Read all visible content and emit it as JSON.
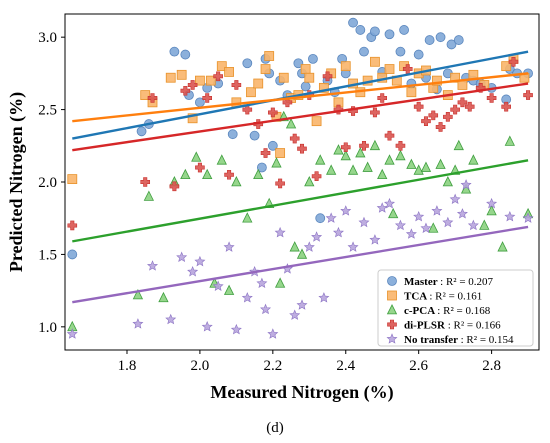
{
  "chart_data": {
    "type": "scatter",
    "xlabel": "Measured Nitrogen (%)",
    "ylabel": "Predicted Nitrogen (%)",
    "caption": "(d)",
    "xlim": [
      1.63,
      2.93
    ],
    "ylim": [
      0.84,
      3.16
    ],
    "xticks": [
      1.8,
      2.0,
      2.2,
      2.4,
      2.6,
      2.8
    ],
    "yticks": [
      1.0,
      1.5,
      2.0,
      2.5,
      3.0
    ],
    "xtick_labels": [
      "1.8",
      "2.0",
      "2.2",
      "2.4",
      "2.6",
      "2.8"
    ],
    "ytick_labels": [
      "1.0",
      "1.5",
      "2.0",
      "2.5",
      "3.0"
    ],
    "grid": false,
    "legend_position": "lower-right",
    "series": [
      {
        "name": "Master",
        "r2_label": ": R² = 0.207",
        "marker": "circle",
        "color": "#7fa7d7",
        "edge": "#5a86bd",
        "line_color": "#1f77b4",
        "fit": [
          [
            1.65,
            2.3
          ],
          [
            2.9,
            2.9
          ]
        ],
        "points": [
          [
            1.65,
            1.5
          ],
          [
            1.84,
            2.35
          ],
          [
            1.86,
            2.4
          ],
          [
            1.93,
            2.9
          ],
          [
            1.96,
            2.88
          ],
          [
            1.97,
            2.6
          ],
          [
            2.0,
            2.55
          ],
          [
            2.02,
            2.65
          ],
          [
            2.05,
            2.68
          ],
          [
            2.09,
            2.33
          ],
          [
            2.13,
            2.82
          ],
          [
            2.15,
            2.32
          ],
          [
            2.17,
            2.1
          ],
          [
            2.18,
            2.85
          ],
          [
            2.19,
            2.75
          ],
          [
            2.2,
            2.25
          ],
          [
            2.22,
            2.7
          ],
          [
            2.24,
            2.6
          ],
          [
            2.27,
            2.82
          ],
          [
            2.28,
            2.75
          ],
          [
            2.29,
            2.66
          ],
          [
            2.31,
            2.85
          ],
          [
            2.33,
            1.75
          ],
          [
            2.35,
            2.7
          ],
          [
            2.37,
            2.62
          ],
          [
            2.39,
            2.85
          ],
          [
            2.4,
            2.75
          ],
          [
            2.42,
            3.1
          ],
          [
            2.44,
            3.05
          ],
          [
            2.45,
            2.9
          ],
          [
            2.47,
            3.0
          ],
          [
            2.48,
            3.04
          ],
          [
            2.5,
            2.76
          ],
          [
            2.52,
            3.02
          ],
          [
            2.55,
            2.9
          ],
          [
            2.56,
            3.05
          ],
          [
            2.58,
            2.68
          ],
          [
            2.6,
            2.88
          ],
          [
            2.62,
            2.72
          ],
          [
            2.63,
            2.98
          ],
          [
            2.65,
            2.64
          ],
          [
            2.66,
            3.0
          ],
          [
            2.68,
            2.75
          ],
          [
            2.69,
            2.95
          ],
          [
            2.71,
            2.98
          ],
          [
            2.73,
            2.72
          ],
          [
            2.75,
            2.7
          ],
          [
            2.77,
            2.68
          ],
          [
            2.8,
            2.65
          ],
          [
            2.84,
            2.57
          ],
          [
            2.85,
            2.78
          ],
          [
            2.87,
            2.75
          ],
          [
            2.9,
            2.75
          ]
        ]
      },
      {
        "name": "TCA",
        "r2_label": ": R² = 0.161",
        "marker": "square",
        "color": "#f9b56a",
        "edge": "#e8922a",
        "line_color": "#ff7f0e",
        "fit": [
          [
            1.65,
            2.42
          ],
          [
            2.9,
            2.75
          ]
        ],
        "points": [
          [
            1.65,
            2.02
          ],
          [
            1.85,
            2.6
          ],
          [
            1.87,
            2.55
          ],
          [
            1.92,
            2.72
          ],
          [
            1.95,
            2.74
          ],
          [
            1.98,
            2.44
          ],
          [
            2.0,
            2.7
          ],
          [
            2.03,
            2.7
          ],
          [
            2.06,
            2.8
          ],
          [
            2.08,
            2.76
          ],
          [
            2.1,
            2.55
          ],
          [
            2.14,
            2.62
          ],
          [
            2.16,
            2.68
          ],
          [
            2.18,
            2.78
          ],
          [
            2.19,
            2.87
          ],
          [
            2.21,
            2.45
          ],
          [
            2.22,
            2.2
          ],
          [
            2.23,
            2.72
          ],
          [
            2.25,
            2.58
          ],
          [
            2.27,
            2.6
          ],
          [
            2.29,
            2.78
          ],
          [
            2.3,
            2.72
          ],
          [
            2.32,
            2.42
          ],
          [
            2.34,
            2.65
          ],
          [
            2.36,
            2.75
          ],
          [
            2.38,
            2.55
          ],
          [
            2.4,
            2.8
          ],
          [
            2.42,
            2.68
          ],
          [
            2.44,
            2.62
          ],
          [
            2.46,
            2.7
          ],
          [
            2.48,
            2.83
          ],
          [
            2.5,
            2.72
          ],
          [
            2.52,
            2.78
          ],
          [
            2.54,
            2.7
          ],
          [
            2.56,
            2.8
          ],
          [
            2.58,
            2.62
          ],
          [
            2.6,
            2.75
          ],
          [
            2.62,
            2.77
          ],
          [
            2.64,
            2.65
          ],
          [
            2.65,
            2.7
          ],
          [
            2.68,
            2.6
          ],
          [
            2.7,
            2.72
          ],
          [
            2.72,
            2.67
          ],
          [
            2.75,
            2.74
          ],
          [
            2.78,
            2.67
          ],
          [
            2.84,
            2.8
          ],
          [
            2.86,
            2.85
          ],
          [
            2.89,
            2.72
          ]
        ]
      },
      {
        "name": "c-PCA",
        "r2_label": ": R² = 0.168",
        "marker": "triangle",
        "color": "#8bd17f",
        "edge": "#3f9e3f",
        "line_color": "#2ca02c",
        "fit": [
          [
            1.65,
            1.59
          ],
          [
            2.9,
            2.15
          ]
        ],
        "points": [
          [
            1.65,
            1.0
          ],
          [
            1.83,
            1.22
          ],
          [
            1.86,
            1.9
          ],
          [
            1.9,
            1.2
          ],
          [
            1.93,
            2.0
          ],
          [
            1.96,
            2.05
          ],
          [
            1.99,
            2.17
          ],
          [
            2.02,
            2.05
          ],
          [
            2.04,
            1.3
          ],
          [
            2.06,
            2.15
          ],
          [
            2.08,
            1.25
          ],
          [
            2.1,
            2.0
          ],
          [
            2.13,
            1.75
          ],
          [
            2.16,
            2.05
          ],
          [
            2.19,
            1.85
          ],
          [
            2.21,
            2.13
          ],
          [
            2.22,
            1.3
          ],
          [
            2.23,
            2.45
          ],
          [
            2.25,
            2.4
          ],
          [
            2.26,
            1.55
          ],
          [
            2.28,
            1.5
          ],
          [
            2.3,
            2.0
          ],
          [
            2.33,
            2.15
          ],
          [
            2.36,
            2.08
          ],
          [
            2.38,
            2.22
          ],
          [
            2.4,
            2.18
          ],
          [
            2.42,
            2.08
          ],
          [
            2.44,
            2.2
          ],
          [
            2.46,
            2.1
          ],
          [
            2.48,
            2.25
          ],
          [
            2.5,
            2.05
          ],
          [
            2.52,
            2.15
          ],
          [
            2.53,
            1.78
          ],
          [
            2.55,
            2.18
          ],
          [
            2.58,
            2.12
          ],
          [
            2.6,
            2.08
          ],
          [
            2.62,
            2.1
          ],
          [
            2.64,
            1.68
          ],
          [
            2.66,
            2.12
          ],
          [
            2.68,
            2.0
          ],
          [
            2.7,
            2.08
          ],
          [
            2.71,
            2.25
          ],
          [
            2.73,
            1.95
          ],
          [
            2.75,
            2.15
          ],
          [
            2.78,
            1.7
          ],
          [
            2.8,
            1.8
          ],
          [
            2.83,
            1.55
          ],
          [
            2.85,
            2.28
          ],
          [
            2.9,
            1.78
          ]
        ]
      },
      {
        "name": "di-PLSR",
        "r2_label": ": R² = 0.166",
        "marker": "plus",
        "color": "#d9534f",
        "edge": "#c9302c",
        "line_color": "#d62728",
        "fit": [
          [
            1.65,
            2.22
          ],
          [
            2.9,
            2.68
          ]
        ],
        "points": [
          [
            1.65,
            1.7
          ],
          [
            1.85,
            2.0
          ],
          [
            1.87,
            2.58
          ],
          [
            1.93,
            1.97
          ],
          [
            1.96,
            2.63
          ],
          [
            1.98,
            2.67
          ],
          [
            2.0,
            2.1
          ],
          [
            2.02,
            2.58
          ],
          [
            2.05,
            2.73
          ],
          [
            2.08,
            2.05
          ],
          [
            2.1,
            2.67
          ],
          [
            2.13,
            2.5
          ],
          [
            2.16,
            2.4
          ],
          [
            2.18,
            2.2
          ],
          [
            2.2,
            2.48
          ],
          [
            2.22,
            1.99
          ],
          [
            2.24,
            2.55
          ],
          [
            2.26,
            2.3
          ],
          [
            2.28,
            2.23
          ],
          [
            2.3,
            2.6
          ],
          [
            2.32,
            2.04
          ],
          [
            2.35,
            2.73
          ],
          [
            2.38,
            2.5
          ],
          [
            2.4,
            2.24
          ],
          [
            2.42,
            2.49
          ],
          [
            2.45,
            2.25
          ],
          [
            2.48,
            2.48
          ],
          [
            2.5,
            2.58
          ],
          [
            2.52,
            2.32
          ],
          [
            2.55,
            2.25
          ],
          [
            2.57,
            2.78
          ],
          [
            2.6,
            2.52
          ],
          [
            2.62,
            2.42
          ],
          [
            2.64,
            2.46
          ],
          [
            2.66,
            2.38
          ],
          [
            2.68,
            2.45
          ],
          [
            2.7,
            2.5
          ],
          [
            2.72,
            2.55
          ],
          [
            2.74,
            2.52
          ],
          [
            2.77,
            2.65
          ],
          [
            2.8,
            2.58
          ],
          [
            2.84,
            2.52
          ],
          [
            2.86,
            2.83
          ],
          [
            2.9,
            2.6
          ]
        ]
      },
      {
        "name": "No transfer",
        "r2_label": ": R² = 0.154",
        "marker": "star",
        "color": "#b7a4dd",
        "edge": "#8c74c4",
        "line_color": "#9467bd",
        "fit": [
          [
            1.65,
            1.17
          ],
          [
            2.9,
            1.69
          ]
        ],
        "points": [
          [
            1.65,
            0.95
          ],
          [
            1.83,
            1.02
          ],
          [
            1.87,
            1.42
          ],
          [
            1.92,
            1.05
          ],
          [
            1.95,
            1.48
          ],
          [
            1.98,
            1.38
          ],
          [
            2.0,
            1.45
          ],
          [
            2.02,
            1.0
          ],
          [
            2.05,
            1.28
          ],
          [
            2.08,
            1.55
          ],
          [
            2.1,
            0.98
          ],
          [
            2.13,
            1.2
          ],
          [
            2.15,
            1.38
          ],
          [
            2.17,
            1.3
          ],
          [
            2.18,
            1.12
          ],
          [
            2.2,
            0.95
          ],
          [
            2.22,
            1.65
          ],
          [
            2.24,
            1.4
          ],
          [
            2.26,
            1.08
          ],
          [
            2.28,
            1.15
          ],
          [
            2.3,
            1.55
          ],
          [
            2.32,
            1.62
          ],
          [
            2.34,
            1.2
          ],
          [
            2.36,
            1.75
          ],
          [
            2.38,
            1.65
          ],
          [
            2.4,
            1.8
          ],
          [
            2.42,
            1.55
          ],
          [
            2.45,
            1.72
          ],
          [
            2.48,
            1.6
          ],
          [
            2.5,
            1.82
          ],
          [
            2.52,
            1.85
          ],
          [
            2.55,
            1.7
          ],
          [
            2.58,
            1.64
          ],
          [
            2.6,
            1.76
          ],
          [
            2.62,
            1.68
          ],
          [
            2.65,
            1.8
          ],
          [
            2.68,
            1.72
          ],
          [
            2.7,
            1.88
          ],
          [
            2.72,
            1.78
          ],
          [
            2.73,
            1.98
          ],
          [
            2.75,
            1.7
          ],
          [
            2.8,
            1.85
          ],
          [
            2.85,
            1.76
          ],
          [
            2.9,
            1.75
          ]
        ]
      }
    ]
  }
}
